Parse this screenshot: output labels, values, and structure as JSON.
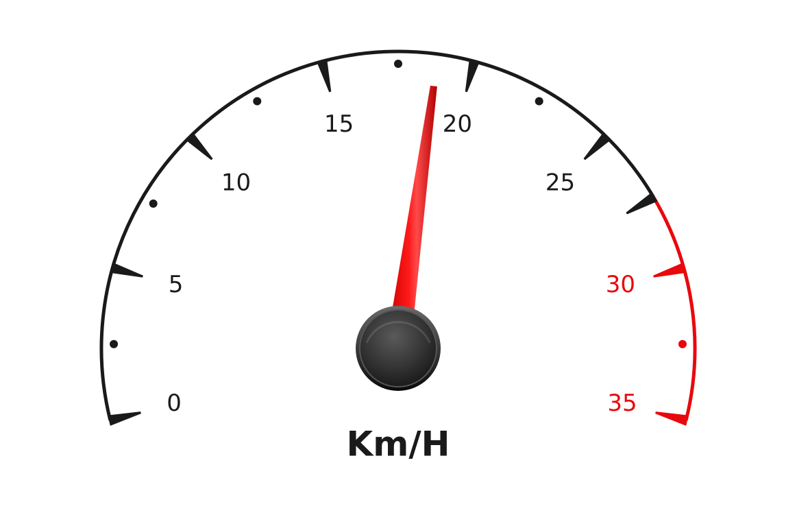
{
  "gauge": {
    "unit": "Km/H",
    "min": 0,
    "max": 35,
    "major_step": 5,
    "minor_step": 2.5,
    "value": 18.8,
    "redline_start": 27.5,
    "major_labels": [
      "0",
      "5",
      "10",
      "15",
      "20",
      "25",
      "30",
      "35"
    ],
    "colors": {
      "scale": "#1a1a1a",
      "redline": "#e8090d",
      "needle": "#ff0000",
      "hub": "#2b2b2b"
    }
  }
}
